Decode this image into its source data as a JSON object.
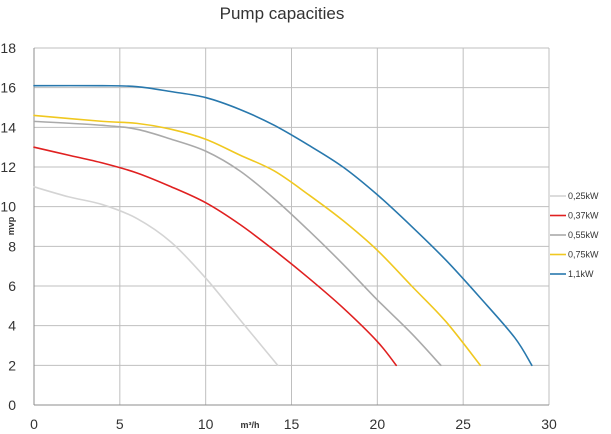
{
  "chart_data": {
    "type": "line",
    "title": "Pump capacities",
    "xlabel": "m³/h",
    "ylabel": "mvp",
    "xlim": [
      0,
      30
    ],
    "ylim": [
      0,
      18
    ],
    "xticks": [
      0,
      5,
      10,
      15,
      20,
      25,
      30
    ],
    "yticks": [
      0,
      2,
      4,
      6,
      8,
      10,
      12,
      14,
      16,
      18
    ],
    "grid": true,
    "legend_position": "right",
    "series": [
      {
        "name": "0,25kW",
        "color": "#d4d4d4",
        "points": [
          [
            0,
            11
          ],
          [
            2,
            10.5
          ],
          [
            4,
            10.1
          ],
          [
            6,
            9.4
          ],
          [
            8,
            8.2
          ],
          [
            10,
            6.4
          ],
          [
            12,
            4.3
          ],
          [
            14.2,
            2
          ]
        ]
      },
      {
        "name": "0,37kW",
        "color": "#e02020",
        "points": [
          [
            0,
            13
          ],
          [
            2,
            12.6
          ],
          [
            4,
            12.2
          ],
          [
            6,
            11.7
          ],
          [
            8,
            11.0
          ],
          [
            10,
            10.2
          ],
          [
            12,
            9.1
          ],
          [
            14,
            7.8
          ],
          [
            16,
            6.4
          ],
          [
            18,
            4.9
          ],
          [
            20,
            3.2
          ],
          [
            21.1,
            2
          ]
        ]
      },
      {
        "name": "0,55kW",
        "color": "#aaaaaa",
        "points": [
          [
            0,
            14.3
          ],
          [
            4,
            14.1
          ],
          [
            6,
            13.9
          ],
          [
            8,
            13.4
          ],
          [
            10,
            12.8
          ],
          [
            12,
            11.8
          ],
          [
            14,
            10.4
          ],
          [
            16,
            8.8
          ],
          [
            18,
            7.1
          ],
          [
            20,
            5.3
          ],
          [
            22,
            3.6
          ],
          [
            23.7,
            2
          ]
        ]
      },
      {
        "name": "0,75kW",
        "color": "#f0c820",
        "points": [
          [
            0,
            14.6
          ],
          [
            4,
            14.3
          ],
          [
            6,
            14.2
          ],
          [
            8,
            13.9
          ],
          [
            10,
            13.4
          ],
          [
            12,
            12.6
          ],
          [
            14,
            11.8
          ],
          [
            16,
            10.6
          ],
          [
            18,
            9.3
          ],
          [
            20,
            7.8
          ],
          [
            22,
            6.0
          ],
          [
            24,
            4.2
          ],
          [
            26,
            2
          ]
        ]
      },
      {
        "name": "1,1kW",
        "color": "#2878ad",
        "points": [
          [
            0,
            16.1
          ],
          [
            4,
            16.1
          ],
          [
            6,
            16.05
          ],
          [
            8,
            15.8
          ],
          [
            10,
            15.5
          ],
          [
            12,
            14.9
          ],
          [
            14,
            14.1
          ],
          [
            16,
            13.1
          ],
          [
            18,
            12.0
          ],
          [
            20,
            10.6
          ],
          [
            22,
            9.0
          ],
          [
            24,
            7.3
          ],
          [
            26,
            5.4
          ],
          [
            28,
            3.4
          ],
          [
            29,
            2
          ]
        ]
      }
    ]
  }
}
